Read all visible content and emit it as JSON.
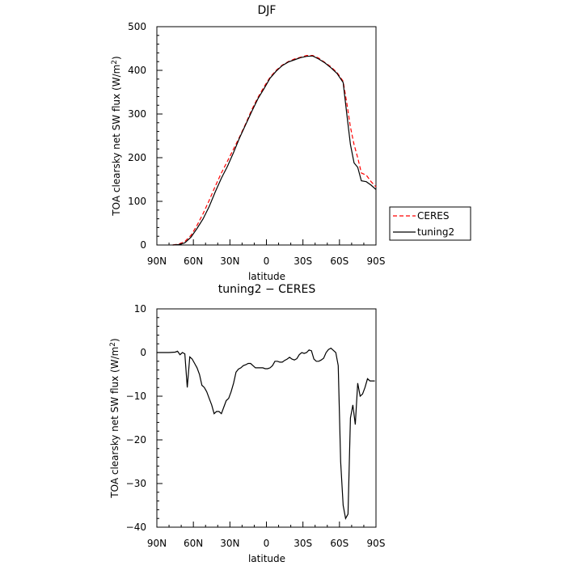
{
  "chart_data": [
    {
      "type": "line",
      "title": "DJF",
      "xlabel": "latitude",
      "ylabel": "TOA clearsky net SW flux (W/m",
      "ylabel_sup": "2",
      "ylabel_end": ")",
      "xlim": [
        -90,
        90
      ],
      "ylim": [
        0,
        500
      ],
      "xticks": [
        -90,
        -60,
        -30,
        0,
        30,
        60,
        90
      ],
      "xtick_labels": [
        "90N",
        "60N",
        "30N",
        "0",
        "30S",
        "60S",
        "90S"
      ],
      "yticks": [
        0,
        100,
        200,
        300,
        400,
        500
      ],
      "ytick_labels": [
        "0",
        "100",
        "200",
        "300",
        "400",
        "500"
      ],
      "grid": false,
      "legend_position": "right",
      "series": [
        {
          "name": "CERES",
          "color": "#ff0000",
          "dash": "dashed",
          "x": [
            -77,
            -72,
            -67,
            -62,
            -57,
            -52,
            -47,
            -42,
            -37,
            -32,
            -27,
            -22,
            -17,
            -12,
            -7,
            -2,
            3,
            8,
            13,
            18,
            23,
            28,
            33,
            38,
            43,
            48,
            53,
            58,
            63,
            66,
            69,
            72,
            75,
            78,
            82,
            86,
            90
          ],
          "y": [
            0,
            2,
            8,
            22,
            45,
            72,
            102,
            135,
            165,
            192,
            220,
            248,
            278,
            310,
            338,
            362,
            384,
            400,
            412,
            420,
            426,
            430,
            434,
            434,
            428,
            418,
            408,
            395,
            375,
            325,
            270,
            230,
            200,
            165,
            160,
            145,
            133
          ]
        },
        {
          "name": "tuning2",
          "color": "#000000",
          "dash": "solid",
          "x": [
            -77,
            -72,
            -67,
            -62,
            -57,
            -52,
            -47,
            -42,
            -37,
            -32,
            -27,
            -22,
            -17,
            -12,
            -7,
            -2,
            3,
            8,
            13,
            18,
            23,
            28,
            33,
            38,
            43,
            48,
            53,
            58,
            63,
            66,
            69,
            72,
            75,
            78,
            82,
            86,
            90
          ],
          "y": [
            0,
            1,
            5,
            18,
            38,
            60,
            88,
            122,
            153,
            180,
            212,
            246,
            276,
            306,
            335,
            358,
            382,
            398,
            411,
            419,
            424,
            429,
            432,
            433,
            426,
            417,
            406,
            393,
            372,
            300,
            230,
            188,
            178,
            147,
            145,
            137,
            127
          ]
        }
      ]
    },
    {
      "type": "line",
      "title": "tuning2 − CERES",
      "xlabel": "latitude",
      "ylabel": "TOA clearsky net SW flux (W/m",
      "ylabel_sup": "2",
      "ylabel_end": ")",
      "xlim": [
        -90,
        90
      ],
      "ylim": [
        -40,
        10
      ],
      "xticks": [
        -90,
        -60,
        -30,
        0,
        30,
        60,
        90
      ],
      "xtick_labels": [
        "90N",
        "60N",
        "30N",
        "0",
        "30S",
        "60S",
        "90S"
      ],
      "yticks": [
        -40,
        -30,
        -20,
        -10,
        0,
        10
      ],
      "ytick_labels": [
        "−40",
        "−30",
        "−20",
        "−10",
        "0",
        "10"
      ],
      "grid": false,
      "series": [
        {
          "color": "#000000",
          "dash": "solid",
          "x": [
            -90,
            -85,
            -80,
            -75,
            -73,
            -71,
            -69,
            -67,
            -65,
            -63,
            -61,
            -59,
            -57,
            -55,
            -53,
            -51,
            -49,
            -47,
            -45,
            -43,
            -41,
            -39,
            -37,
            -35,
            -33,
            -31,
            -29,
            -27,
            -25,
            -23,
            -21,
            -19,
            -17,
            -15,
            -13,
            -11,
            -9,
            -7,
            -5,
            -3,
            -1,
            1,
            3,
            5,
            7,
            9,
            11,
            13,
            15,
            17,
            19,
            21,
            23,
            25,
            27,
            29,
            31,
            33,
            35,
            37,
            39,
            41,
            43,
            45,
            47,
            49,
            51,
            53,
            55,
            57,
            59,
            61,
            63,
            65,
            67,
            69,
            71,
            73,
            75,
            77,
            79,
            81,
            83,
            85,
            87,
            89
          ],
          "y": [
            0,
            0,
            0,
            0.1,
            0.3,
            -0.5,
            0,
            -0.3,
            -8,
            -1,
            -1.5,
            -2.5,
            -3.5,
            -5,
            -7.5,
            -8,
            -9,
            -10.5,
            -12,
            -14,
            -13.5,
            -13.5,
            -14,
            -12.5,
            -11,
            -10.5,
            -9,
            -7,
            -4.5,
            -3.8,
            -3.5,
            -3,
            -2.8,
            -2.5,
            -2.5,
            -3,
            -3.5,
            -3.5,
            -3.5,
            -3.5,
            -3.7,
            -3.7,
            -3.5,
            -3,
            -2,
            -2,
            -2.2,
            -2.2,
            -1.8,
            -1.5,
            -1.1,
            -1.5,
            -1.7,
            -1.4,
            -0.5,
            0,
            -0.2,
            0,
            0.6,
            0.4,
            -1.5,
            -2,
            -2,
            -1.7,
            -1.3,
            0,
            0.7,
            1,
            0.5,
            0,
            -3,
            -25,
            -35,
            -38,
            -37,
            -15,
            -12,
            -16.5,
            -7,
            -10,
            -9.5,
            -8,
            -6,
            -6.5,
            -6.5,
            -6.5
          ]
        }
      ]
    }
  ]
}
